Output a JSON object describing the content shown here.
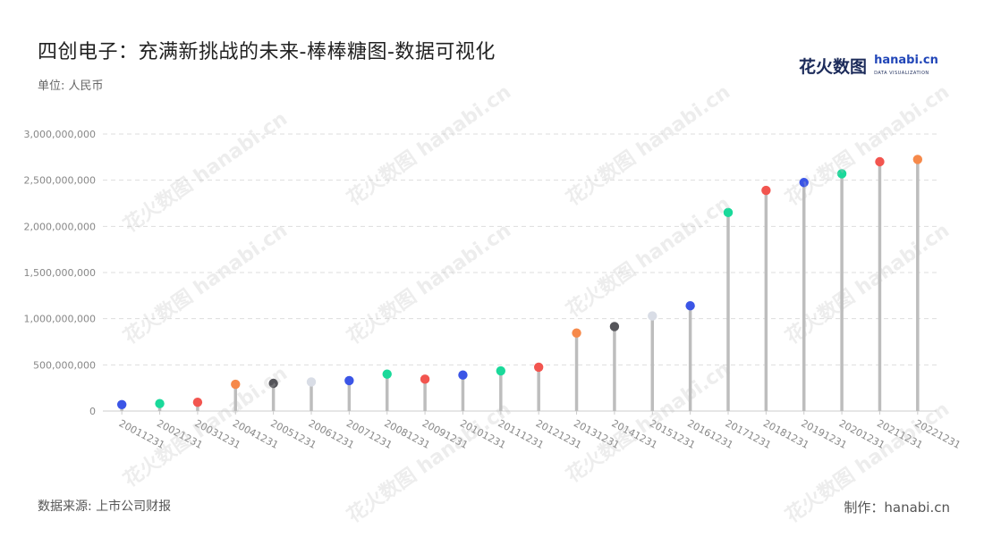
{
  "title": "四创电子：充满新挑战的未来-棒棒糖图-数据可视化",
  "unit_label": "单位: 人民币",
  "source_label": "数据来源: 上市公司财报",
  "maker_label": "制作：hanabi.cn",
  "logo": {
    "cn_text": "花火数图",
    "en_text": "hanabi.cn",
    "en_sub": "DATA VISUALIZATION"
  },
  "watermark_text": "花火数图 hanabi.cn",
  "colors": {
    "stem": "#bdbdbd",
    "grid": "#dddddd",
    "axis": "#cccccc",
    "tick_text": "#888888",
    "points": [
      "#3b55e6",
      "#1ad99a",
      "#f2554f",
      "#f6894a",
      "#55555a",
      "#d9dde6"
    ]
  },
  "chart_data": {
    "type": "lollipop",
    "title": "四创电子：充满新挑战的未来-棒棒糖图-数据可视化",
    "ylabel": "单位: 人民币",
    "xlabel": "",
    "ylim": [
      0,
      3000000000
    ],
    "yticks": [
      0,
      500000000,
      1000000000,
      1500000000,
      2000000000,
      2500000000,
      3000000000
    ],
    "ytick_labels": [
      "0",
      "500,000,000",
      "1,000,000,000",
      "1,500,000,000",
      "2,000,000,000",
      "2,500,000,000",
      "3,000,000,000"
    ],
    "grid": true,
    "categories": [
      "20011231",
      "20021231",
      "20031231",
      "20041231",
      "20051231",
      "20061231",
      "20071231",
      "20081231",
      "20091231",
      "20101231",
      "20111231",
      "20121231",
      "20131231",
      "20141231",
      "20151231",
      "20161231",
      "20171231",
      "20181231",
      "20191231",
      "20201231",
      "20211231",
      "20221231"
    ],
    "values": [
      70000000,
      80000000,
      95000000,
      290000000,
      300000000,
      315000000,
      330000000,
      400000000,
      345000000,
      390000000,
      435000000,
      475000000,
      845000000,
      915000000,
      1030000000,
      1140000000,
      2150000000,
      2390000000,
      2475000000,
      2570000000,
      2700000000,
      2725000000
    ],
    "point_colors": [
      "#3b55e6",
      "#1ad99a",
      "#f2554f",
      "#f6894a",
      "#55555a",
      "#d9dde6",
      "#3b55e6",
      "#1ad99a",
      "#f2554f",
      "#3b55e6",
      "#1ad99a",
      "#f2554f",
      "#f6894a",
      "#55555a",
      "#d9dde6",
      "#3b55e6",
      "#1ad99a",
      "#f2554f",
      "#3b55e6",
      "#1ad99a",
      "#f2554f",
      "#f6894a"
    ]
  }
}
